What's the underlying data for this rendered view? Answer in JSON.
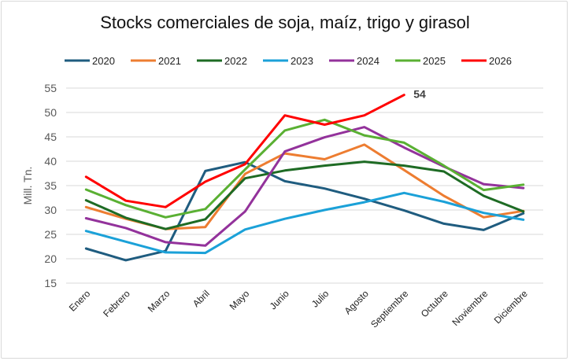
{
  "chart_data": {
    "type": "line",
    "title": "Stocks comerciales de soja, maíz, trigo y girasol",
    "xlabel": "",
    "ylabel": "Mill. Tn.",
    "ylim": [
      15,
      55
    ],
    "yticks": [
      15,
      20,
      25,
      30,
      35,
      40,
      45,
      50,
      55
    ],
    "grid": true,
    "legend_position": "top",
    "categories": [
      "Enero",
      "Febrero",
      "Marzo",
      "Abril",
      "Mayo",
      "Junio",
      "Julio",
      "Agosto",
      "Septiembre",
      "Octubre",
      "Noviembre",
      "Diciembre"
    ],
    "series": [
      {
        "name": "2020",
        "color": "#1f5c7f",
        "values": [
          22.1,
          19.7,
          21.6,
          38.0,
          39.8,
          35.9,
          34.4,
          32.3,
          29.9,
          27.2,
          25.9,
          29.3
        ]
      },
      {
        "name": "2021",
        "color": "#ed7d31",
        "values": [
          30.6,
          28.2,
          26.1,
          26.5,
          37.4,
          41.6,
          40.4,
          43.4,
          38.2,
          32.9,
          28.5,
          29.8
        ]
      },
      {
        "name": "2022",
        "color": "#1e6b24",
        "values": [
          32.0,
          28.4,
          26.1,
          28.1,
          36.5,
          38.1,
          39.1,
          39.9,
          39.1,
          37.9,
          32.9,
          29.7
        ]
      },
      {
        "name": "2023",
        "color": "#1ba1d8",
        "values": [
          25.7,
          23.5,
          21.3,
          21.2,
          26.0,
          28.2,
          30.0,
          31.6,
          33.5,
          31.7,
          29.4,
          28.0
        ]
      },
      {
        "name": "2024",
        "color": "#93329b",
        "values": [
          28.3,
          26.3,
          23.4,
          22.7,
          29.7,
          42.0,
          44.9,
          47.0,
          42.8,
          38.9,
          35.3,
          34.5
        ]
      },
      {
        "name": "2025",
        "color": "#5ab033",
        "values": [
          34.2,
          31.0,
          28.5,
          30.2,
          38.3,
          46.3,
          48.5,
          45.3,
          43.8,
          39.1,
          34.1,
          35.2
        ]
      },
      {
        "name": "2026",
        "color": "#ff0000",
        "values": [
          36.8,
          31.9,
          30.6,
          35.8,
          39.4,
          49.4,
          47.5,
          49.4,
          53.6,
          null,
          null,
          null
        ]
      }
    ],
    "annotations": [
      {
        "text": "54",
        "series": "2026",
        "category": "Septiembre",
        "value": 53.6
      }
    ]
  }
}
